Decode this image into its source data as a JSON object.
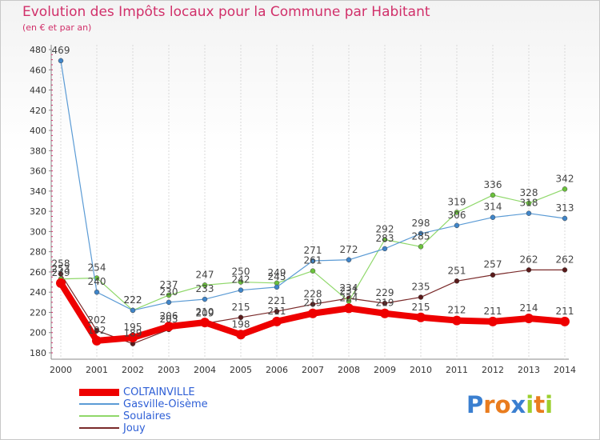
{
  "chart_data": {
    "type": "line",
    "title": "Evolution des Impôts locaux pour la Commune par Habitant",
    "subtitle": "(en € et par an)",
    "xlabel": "",
    "ylabel": "",
    "categories": [
      "2000",
      "2001",
      "2002",
      "2003",
      "2004",
      "2005",
      "2006",
      "2007",
      "2008",
      "2009",
      "2010",
      "2011",
      "2012",
      "2013",
      "2014"
    ],
    "ylim": [
      180,
      480
    ],
    "yticks": [
      180,
      200,
      220,
      240,
      260,
      280,
      300,
      320,
      340,
      360,
      380,
      400,
      420,
      440,
      460,
      480
    ],
    "grid": "vertical",
    "legend": "bottom-left",
    "series": [
      {
        "name": "Jouy",
        "color": "#7a2a2a",
        "point_color": "#5a1a1a",
        "width": 1.2,
        "values": [
          258,
          202,
          189,
          203,
          209,
          215,
          221,
          228,
          234,
          229,
          235,
          251,
          257,
          262,
          262
        ],
        "labels": [
          "258",
          "",
          "",
          "",
          "",
          "215",
          "221",
          "228",
          "234",
          "229",
          "235",
          "251",
          "257",
          "262",
          "262"
        ]
      },
      {
        "name": "Soulaires",
        "color": "#8fd86a",
        "point_color": "#6bc23c",
        "width": 1.2,
        "values": [
          253,
          254,
          222,
          237,
          247,
          250,
          249,
          261,
          231,
          292,
          285,
          319,
          336,
          328,
          342
        ],
        "labels": [
          "253",
          "254",
          "",
          "237",
          "247",
          "250",
          "249",
          "261",
          "",
          "292",
          "285",
          "319",
          "336",
          "328",
          "342"
        ]
      },
      {
        "name": "Gasville-Oisème",
        "color": "#5b9bd5",
        "point_color": "#3f85c9",
        "width": 1.2,
        "values": [
          469,
          240,
          222,
          230,
          233,
          242,
          245,
          271,
          272,
          283,
          298,
          306,
          314,
          318,
          313
        ],
        "labels": [
          "469",
          "240",
          "222",
          "230",
          "233",
          "242",
          "245",
          "271",
          "272",
          "283",
          "298",
          "306",
          "314",
          "318",
          "313"
        ]
      },
      {
        "name": "COLTAINVILLE",
        "color": "#ee0000",
        "point_color": "#ee0000",
        "width": 8,
        "values": [
          249,
          192,
          195,
          206,
          210,
          198,
          211,
          219,
          224,
          219,
          215,
          212,
          211,
          214,
          211
        ],
        "labels": [
          "249",
          "192",
          "195",
          "206",
          "210",
          "198",
          "211",
          "219",
          "224",
          "219",
          "215",
          "212",
          "211",
          "214",
          "211"
        ]
      }
    ],
    "extra_labels": [
      {
        "text": "202",
        "x": "2001",
        "y": 202
      },
      {
        "text": "189",
        "x": "2002",
        "y": 189
      },
      {
        "text": "203",
        "x": "2003",
        "y": 203
      },
      {
        "text": "209",
        "x": "2004",
        "y": 209
      },
      {
        "text": "222",
        "x": "2002",
        "y": 222
      },
      {
        "text": "231",
        "x": "2008",
        "y": 231
      }
    ]
  },
  "legend": [
    {
      "name": "COLTAINVILLE",
      "text_color": "#2e5fd6"
    },
    {
      "name": "Gasville-Oisème",
      "text_color": "#2e5fd6"
    },
    {
      "name": "Soulaires",
      "text_color": "#2e5fd6"
    },
    {
      "name": "Jouy",
      "text_color": "#2e5fd6"
    }
  ],
  "logo": {
    "text": "Proxiti",
    "letter_colors": [
      "#3a7fd0",
      "#e97c1e",
      "#e97c1e",
      "#3a7fd0",
      "#9bcf2e",
      "#e97c1e",
      "#9bcf2e"
    ]
  }
}
